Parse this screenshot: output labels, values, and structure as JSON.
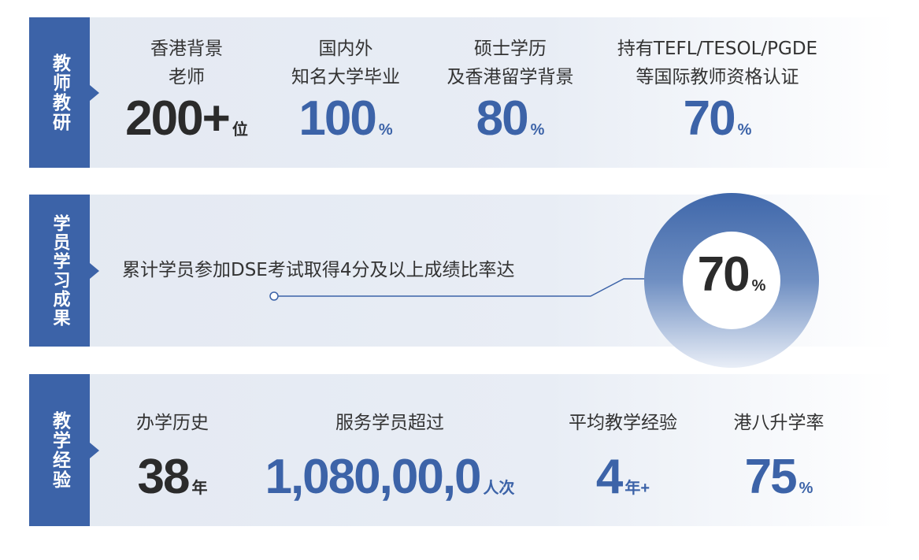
{
  "colors": {
    "brand": "#3c63a8",
    "dark": "#2b2b2b"
  },
  "teachers": {
    "tag": "教师教研",
    "stats": [
      {
        "label1": "香港背景",
        "label2": "老师",
        "value": "200+",
        "unit": "位"
      },
      {
        "label1": "国内外",
        "label2": "知名大学毕业",
        "value": "100",
        "unit": "%"
      },
      {
        "label1": "硕士学历",
        "label2": "及香港留学背景",
        "value": "80",
        "unit": "%"
      },
      {
        "label1": "持有TEFL/TESOL/PGDE",
        "label2": "等国际教师资格认证",
        "value": "70",
        "unit": "%"
      }
    ]
  },
  "results": {
    "tag": "学员学习成果",
    "text": "累计学员参加DSE考试取得4分及以上成绩比率达",
    "value": "70",
    "unit": "%",
    "ring_percent": 70
  },
  "experience": {
    "tag": "教学经验",
    "stats": [
      {
        "label": "办学历史",
        "value": "38",
        "unit": "年"
      },
      {
        "label": "服务学员超过",
        "value": "1,080,00,0",
        "unit": "人次"
      },
      {
        "label": "平均教学经验",
        "value": "4",
        "unit": "年+"
      },
      {
        "label": "港八升学率",
        "value": "75",
        "unit": "%"
      }
    ]
  }
}
